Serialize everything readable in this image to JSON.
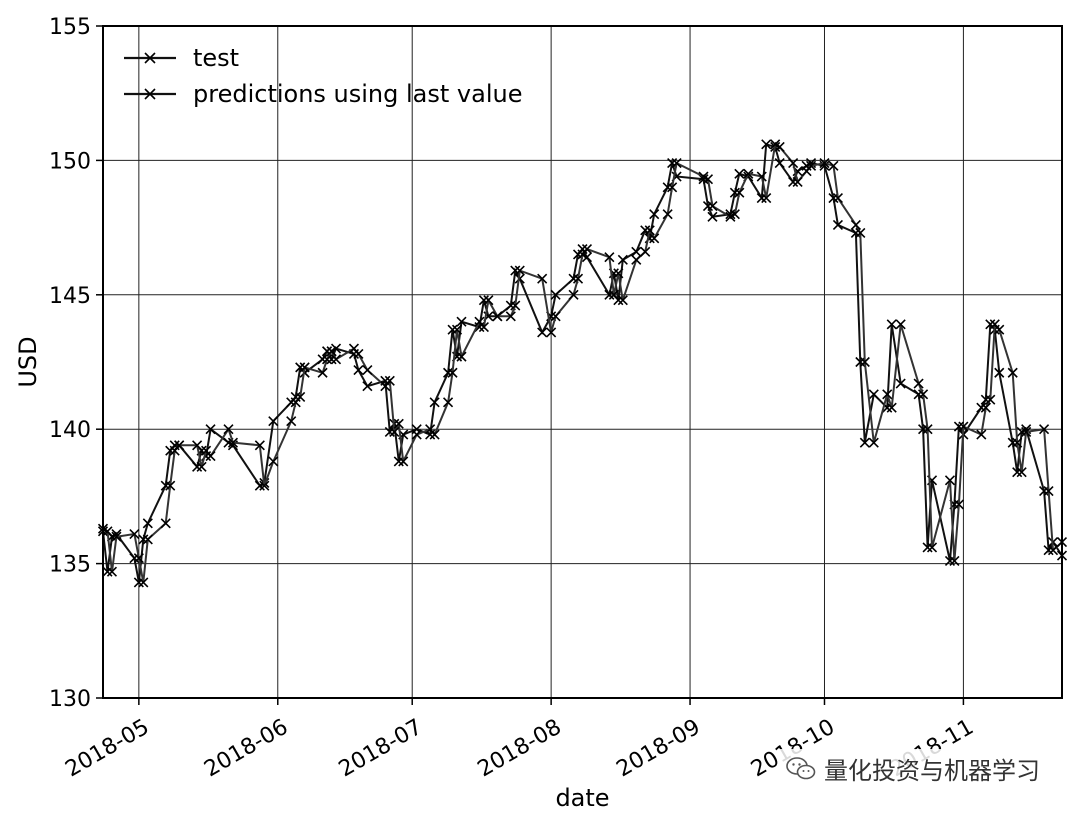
{
  "chart_data": {
    "type": "line",
    "xlabel": "date",
    "ylabel": "USD",
    "ylim": [
      130,
      155
    ],
    "yticks": [
      130,
      135,
      140,
      145,
      150,
      155
    ],
    "xlim": [
      "2018-04-23",
      "2018-11-23"
    ],
    "xticks": [
      {
        "date": "2018-05-01",
        "label": "2018-05"
      },
      {
        "date": "2018-06-01",
        "label": "2018-06"
      },
      {
        "date": "2018-07-01",
        "label": "2018-07"
      },
      {
        "date": "2018-08-01",
        "label": "2018-08"
      },
      {
        "date": "2018-09-01",
        "label": "2018-09"
      },
      {
        "date": "2018-10-01",
        "label": "2018-10"
      },
      {
        "date": "2018-11-01",
        "label": "2018-11"
      }
    ],
    "grid": true,
    "legend_position": "top-left",
    "series": [
      {
        "name": "test",
        "points": [
          [
            "2018-04-23",
            136.2
          ],
          [
            "2018-04-24",
            134.7
          ],
          [
            "2018-04-25",
            136.0
          ],
          [
            "2018-04-26",
            136.1
          ],
          [
            "2018-04-30",
            135.2
          ],
          [
            "2018-05-01",
            134.3
          ],
          [
            "2018-05-02",
            135.9
          ],
          [
            "2018-05-03",
            136.5
          ],
          [
            "2018-05-07",
            137.9
          ],
          [
            "2018-05-08",
            139.2
          ],
          [
            "2018-05-09",
            139.4
          ],
          [
            "2018-05-10",
            139.4
          ],
          [
            "2018-05-14",
            138.6
          ],
          [
            "2018-05-15",
            139.2
          ],
          [
            "2018-05-16",
            139.0
          ],
          [
            "2018-05-17",
            140.0
          ],
          [
            "2018-05-21",
            139.5
          ],
          [
            "2018-05-22",
            139.4
          ],
          [
            "2018-05-28",
            137.9
          ],
          [
            "2018-05-29",
            138.0
          ],
          [
            "2018-05-31",
            140.3
          ],
          [
            "2018-06-04",
            141.0
          ],
          [
            "2018-06-05",
            141.2
          ],
          [
            "2018-06-06",
            142.3
          ],
          [
            "2018-06-07",
            142.1
          ],
          [
            "2018-06-11",
            142.6
          ],
          [
            "2018-06-12",
            142.9
          ],
          [
            "2018-06-13",
            142.6
          ],
          [
            "2018-06-14",
            143.0
          ],
          [
            "2018-06-18",
            142.8
          ],
          [
            "2018-06-19",
            142.2
          ],
          [
            "2018-06-21",
            141.6
          ],
          [
            "2018-06-25",
            141.8
          ],
          [
            "2018-06-26",
            139.9
          ],
          [
            "2018-06-27",
            140.2
          ],
          [
            "2018-06-28",
            138.8
          ],
          [
            "2018-06-29",
            139.8
          ],
          [
            "2018-07-02",
            140.0
          ],
          [
            "2018-07-05",
            139.8
          ],
          [
            "2018-07-06",
            141.0
          ],
          [
            "2018-07-09",
            142.1
          ],
          [
            "2018-07-10",
            143.7
          ],
          [
            "2018-07-11",
            142.7
          ],
          [
            "2018-07-12",
            144.0
          ],
          [
            "2018-07-16",
            143.8
          ],
          [
            "2018-07-17",
            144.8
          ],
          [
            "2018-07-18",
            144.2
          ],
          [
            "2018-07-20",
            144.2
          ],
          [
            "2018-07-23",
            144.6
          ],
          [
            "2018-07-24",
            145.9
          ],
          [
            "2018-07-25",
            145.6
          ],
          [
            "2018-07-30",
            143.6
          ],
          [
            "2018-08-01",
            144.2
          ],
          [
            "2018-08-02",
            145.0
          ],
          [
            "2018-08-06",
            145.6
          ],
          [
            "2018-08-07",
            146.5
          ],
          [
            "2018-08-08",
            146.7
          ],
          [
            "2018-08-09",
            146.4
          ],
          [
            "2018-08-14",
            145.0
          ],
          [
            "2018-08-15",
            145.8
          ],
          [
            "2018-08-16",
            144.8
          ],
          [
            "2018-08-17",
            146.3
          ],
          [
            "2018-08-20",
            146.6
          ],
          [
            "2018-08-22",
            147.4
          ],
          [
            "2018-08-23",
            147.1
          ],
          [
            "2018-08-24",
            148.0
          ],
          [
            "2018-08-27",
            149.0
          ],
          [
            "2018-08-28",
            149.9
          ],
          [
            "2018-08-29",
            149.4
          ],
          [
            "2018-09-04",
            149.3
          ],
          [
            "2018-09-05",
            148.3
          ],
          [
            "2018-09-06",
            147.9
          ],
          [
            "2018-09-10",
            148.0
          ],
          [
            "2018-09-11",
            148.8
          ],
          [
            "2018-09-12",
            149.5
          ],
          [
            "2018-09-14",
            149.4
          ],
          [
            "2018-09-17",
            148.6
          ],
          [
            "2018-09-18",
            150.6
          ],
          [
            "2018-09-20",
            150.5
          ],
          [
            "2018-09-21",
            149.9
          ],
          [
            "2018-09-24",
            149.2
          ],
          [
            "2018-09-25",
            149.6
          ],
          [
            "2018-09-27",
            149.8
          ],
          [
            "2018-09-28",
            149.9
          ],
          [
            "2018-10-01",
            149.8
          ],
          [
            "2018-10-03",
            148.6
          ],
          [
            "2018-10-04",
            147.6
          ],
          [
            "2018-10-08",
            147.3
          ],
          [
            "2018-10-09",
            142.5
          ],
          [
            "2018-10-10",
            139.5
          ],
          [
            "2018-10-12",
            141.3
          ],
          [
            "2018-10-15",
            140.8
          ],
          [
            "2018-10-16",
            143.9
          ],
          [
            "2018-10-18",
            141.7
          ],
          [
            "2018-10-22",
            141.3
          ],
          [
            "2018-10-23",
            140.0
          ],
          [
            "2018-10-24",
            135.6
          ],
          [
            "2018-10-25",
            138.1
          ],
          [
            "2018-10-29",
            135.1
          ],
          [
            "2018-10-30",
            137.2
          ],
          [
            "2018-10-31",
            140.1
          ],
          [
            "2018-11-01",
            139.8
          ],
          [
            "2018-11-05",
            140.8
          ],
          [
            "2018-11-06",
            141.1
          ],
          [
            "2018-11-07",
            143.9
          ],
          [
            "2018-11-08",
            143.7
          ],
          [
            "2018-11-09",
            142.1
          ],
          [
            "2018-11-12",
            139.5
          ],
          [
            "2018-11-13",
            138.4
          ],
          [
            "2018-11-14",
            139.9
          ],
          [
            "2018-11-15",
            140.0
          ],
          [
            "2018-11-19",
            137.7
          ],
          [
            "2018-11-20",
            135.5
          ],
          [
            "2018-11-21",
            135.8
          ],
          [
            "2018-11-23",
            135.3
          ]
        ]
      },
      {
        "name": "predictions using last value",
        "points": [
          [
            "2018-04-23",
            136.3
          ],
          [
            "2018-04-24",
            136.2
          ],
          [
            "2018-04-25",
            134.7
          ],
          [
            "2018-04-26",
            136.0
          ],
          [
            "2018-04-30",
            136.1
          ],
          [
            "2018-05-01",
            135.2
          ],
          [
            "2018-05-02",
            134.3
          ],
          [
            "2018-05-03",
            135.9
          ],
          [
            "2018-05-07",
            136.5
          ],
          [
            "2018-05-08",
            137.9
          ],
          [
            "2018-05-09",
            139.2
          ],
          [
            "2018-05-10",
            139.4
          ],
          [
            "2018-05-14",
            139.4
          ],
          [
            "2018-05-15",
            138.6
          ],
          [
            "2018-05-16",
            139.2
          ],
          [
            "2018-05-17",
            139.0
          ],
          [
            "2018-05-21",
            140.0
          ],
          [
            "2018-05-22",
            139.5
          ],
          [
            "2018-05-28",
            139.4
          ],
          [
            "2018-05-29",
            137.9
          ],
          [
            "2018-05-31",
            138.8
          ],
          [
            "2018-06-04",
            140.3
          ],
          [
            "2018-06-05",
            141.0
          ],
          [
            "2018-06-06",
            141.2
          ],
          [
            "2018-06-07",
            142.3
          ],
          [
            "2018-06-11",
            142.1
          ],
          [
            "2018-06-12",
            142.6
          ],
          [
            "2018-06-13",
            142.9
          ],
          [
            "2018-06-14",
            142.6
          ],
          [
            "2018-06-18",
            143.0
          ],
          [
            "2018-06-19",
            142.8
          ],
          [
            "2018-06-21",
            142.2
          ],
          [
            "2018-06-25",
            141.6
          ],
          [
            "2018-06-26",
            141.8
          ],
          [
            "2018-06-27",
            139.9
          ],
          [
            "2018-06-28",
            140.2
          ],
          [
            "2018-06-29",
            138.8
          ],
          [
            "2018-07-02",
            139.8
          ],
          [
            "2018-07-05",
            140.0
          ],
          [
            "2018-07-06",
            139.8
          ],
          [
            "2018-07-09",
            141.0
          ],
          [
            "2018-07-10",
            142.1
          ],
          [
            "2018-07-11",
            143.7
          ],
          [
            "2018-07-12",
            142.7
          ],
          [
            "2018-07-16",
            144.0
          ],
          [
            "2018-07-17",
            143.8
          ],
          [
            "2018-07-18",
            144.8
          ],
          [
            "2018-07-20",
            144.2
          ],
          [
            "2018-07-23",
            144.2
          ],
          [
            "2018-07-24",
            144.6
          ],
          [
            "2018-07-25",
            145.9
          ],
          [
            "2018-07-30",
            145.6
          ],
          [
            "2018-08-01",
            143.6
          ],
          [
            "2018-08-02",
            144.2
          ],
          [
            "2018-08-06",
            145.0
          ],
          [
            "2018-08-07",
            145.6
          ],
          [
            "2018-08-08",
            146.5
          ],
          [
            "2018-08-09",
            146.7
          ],
          [
            "2018-08-14",
            146.4
          ],
          [
            "2018-08-15",
            145.0
          ],
          [
            "2018-08-16",
            145.8
          ],
          [
            "2018-08-17",
            144.8
          ],
          [
            "2018-08-20",
            146.3
          ],
          [
            "2018-08-22",
            146.6
          ],
          [
            "2018-08-23",
            147.4
          ],
          [
            "2018-08-24",
            147.1
          ],
          [
            "2018-08-27",
            148.0
          ],
          [
            "2018-08-28",
            149.0
          ],
          [
            "2018-08-29",
            149.9
          ],
          [
            "2018-09-04",
            149.4
          ],
          [
            "2018-09-05",
            149.3
          ],
          [
            "2018-09-06",
            148.3
          ],
          [
            "2018-09-10",
            147.9
          ],
          [
            "2018-09-11",
            148.0
          ],
          [
            "2018-09-12",
            148.8
          ],
          [
            "2018-09-14",
            149.5
          ],
          [
            "2018-09-17",
            149.4
          ],
          [
            "2018-09-18",
            148.6
          ],
          [
            "2018-09-20",
            150.6
          ],
          [
            "2018-09-21",
            150.5
          ],
          [
            "2018-09-24",
            149.9
          ],
          [
            "2018-09-25",
            149.2
          ],
          [
            "2018-09-27",
            149.6
          ],
          [
            "2018-09-28",
            149.8
          ],
          [
            "2018-10-01",
            149.9
          ],
          [
            "2018-10-03",
            149.8
          ],
          [
            "2018-10-04",
            148.6
          ],
          [
            "2018-10-08",
            147.6
          ],
          [
            "2018-10-09",
            147.3
          ],
          [
            "2018-10-10",
            142.5
          ],
          [
            "2018-10-12",
            139.5
          ],
          [
            "2018-10-15",
            141.3
          ],
          [
            "2018-10-16",
            140.8
          ],
          [
            "2018-10-18",
            143.9
          ],
          [
            "2018-10-22",
            141.7
          ],
          [
            "2018-10-23",
            141.3
          ],
          [
            "2018-10-24",
            140.0
          ],
          [
            "2018-10-25",
            135.6
          ],
          [
            "2018-10-29",
            138.1
          ],
          [
            "2018-10-30",
            135.1
          ],
          [
            "2018-10-31",
            137.2
          ],
          [
            "2018-11-01",
            140.1
          ],
          [
            "2018-11-05",
            139.8
          ],
          [
            "2018-11-06",
            140.8
          ],
          [
            "2018-11-07",
            141.1
          ],
          [
            "2018-11-08",
            143.9
          ],
          [
            "2018-11-09",
            143.7
          ],
          [
            "2018-11-12",
            142.1
          ],
          [
            "2018-11-13",
            139.5
          ],
          [
            "2018-11-14",
            138.4
          ],
          [
            "2018-11-15",
            139.9
          ],
          [
            "2018-11-19",
            140.0
          ],
          [
            "2018-11-20",
            137.7
          ],
          [
            "2018-11-21",
            135.5
          ],
          [
            "2018-11-23",
            135.8
          ]
        ]
      }
    ]
  },
  "watermark": {
    "text": "量化投资与机器学习",
    "icon": "wechat-icon"
  }
}
